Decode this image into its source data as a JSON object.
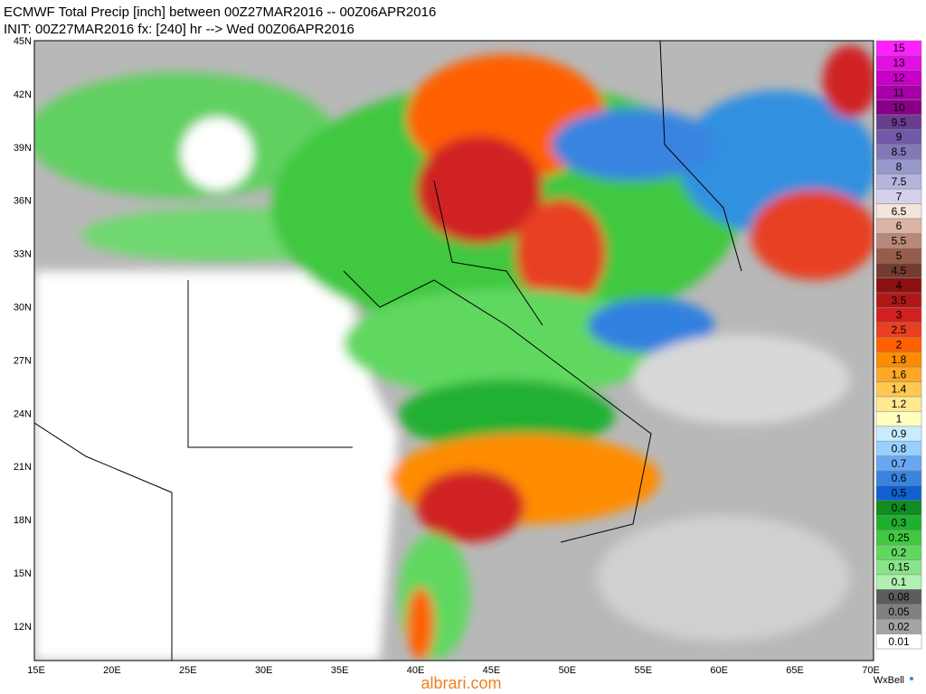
{
  "header": {
    "line1": "ECMWF Total Precip [inch] between 00Z27MAR2016 -- 00Z06APR2016",
    "line2": "INIT: 00Z27MAR2016 fx: [240] hr --> Wed 00Z06APR2016"
  },
  "map": {
    "lat_labels": [
      "45N",
      "42N",
      "39N",
      "36N",
      "33N",
      "30N",
      "27N",
      "24N",
      "21N",
      "18N",
      "15N",
      "12N"
    ],
    "lon_labels": [
      "15E",
      "20E",
      "25E",
      "30E",
      "35E",
      "40E",
      "45E",
      "50E",
      "55E",
      "60E",
      "65E",
      "70E"
    ]
  },
  "colorbar": {
    "labels": [
      "15",
      "13",
      "12",
      "11",
      "10",
      "9.5",
      "9",
      "8.5",
      "8",
      "7.5",
      "7",
      "6.5",
      "6",
      "5.5",
      "5",
      "4.5",
      "4",
      "3.5",
      "3",
      "2.5",
      "2",
      "1.8",
      "1.6",
      "1.4",
      "1.2",
      "1",
      "0.9",
      "0.8",
      "0.7",
      "0.6",
      "0.5",
      "0.4",
      "0.3",
      "0.25",
      "0.2",
      "0.15",
      "0.1",
      "0.08",
      "0.05",
      "0.02",
      "0.01"
    ],
    "colors": [
      "#ff20ff",
      "#e010e0",
      "#c800c8",
      "#a800a8",
      "#880088",
      "#6a3d8f",
      "#705aa8",
      "#8478b8",
      "#9898cc",
      "#b4b4dc",
      "#d4d0ec",
      "#f4e4dc",
      "#dcb4a4",
      "#b88878",
      "#985c4c",
      "#743c30",
      "#8c1010",
      "#b01818",
      "#d02020",
      "#e84020",
      "#ff6000",
      "#ff8c00",
      "#ffa828",
      "#ffc850",
      "#ffe890",
      "#ffffc0",
      "#c8ecff",
      "#98d0ff",
      "#68a8f0",
      "#3884e0",
      "#1060d0",
      "#108c20",
      "#20b030",
      "#40c840",
      "#60d860",
      "#88e488",
      "#b0f0b0",
      "#5c5c5c",
      "#808080",
      "#a4a4a4",
      "#ffffff"
    ]
  },
  "footer": {
    "watermark": "albrari.com",
    "logo": "WxBell"
  }
}
